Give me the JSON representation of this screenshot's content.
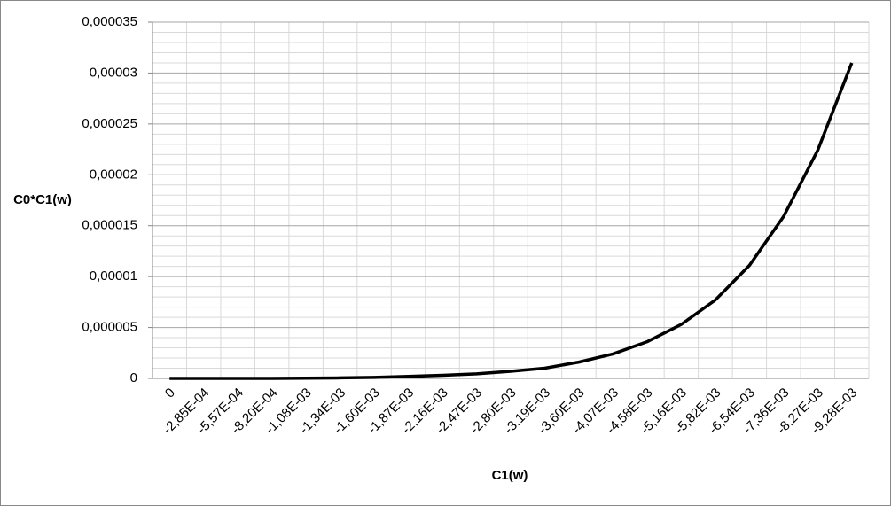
{
  "chart_data": {
    "type": "line",
    "x_label": "C1(w)",
    "y_label": "C0*C1(w)",
    "categories": [
      "0",
      "-2,85E-04",
      "-5,57E-04",
      "-8,20E-04",
      "-1,08E-03",
      "-1,34E-03",
      "-1,60E-03",
      "-1,87E-03",
      "-2,16E-03",
      "-2,47E-03",
      "-2,80E-03",
      "-3,19E-03",
      "-3,60E-03",
      "-4,07E-03",
      "-4,58E-03",
      "-5,16E-03",
      "-5,82E-03",
      "-6,54E-03",
      "-7,36E-03",
      "-8,27E-03",
      "-9,28E-03"
    ],
    "values": [
      0,
      0,
      0,
      0,
      2e-08,
      5e-08,
      1e-07,
      2e-07,
      3e-07,
      4.5e-07,
      7e-07,
      1e-06,
      1.6e-06,
      2.4e-06,
      3.6e-06,
      5.3e-06,
      7.7e-06,
      1.11e-05,
      1.59e-05,
      2.24e-05,
      3.1e-05
    ],
    "color": "#000000",
    "ylim": [
      0,
      3.5e-05
    ],
    "yticks": [
      0,
      {
        "value": 5e-06,
        "label": "0,000005"
      },
      {
        "value": 1e-05,
        "label": "0,00001"
      },
      {
        "value": 1.5e-05,
        "label": "0,000015"
      },
      {
        "value": 2e-05,
        "label": "0,00002"
      },
      {
        "value": 2.5e-05,
        "label": "0,000025"
      },
      {
        "value": 3e-05,
        "label": "0,00003"
      },
      {
        "value": 3.5e-05,
        "label": "0,000035"
      }
    ],
    "grid": true
  }
}
